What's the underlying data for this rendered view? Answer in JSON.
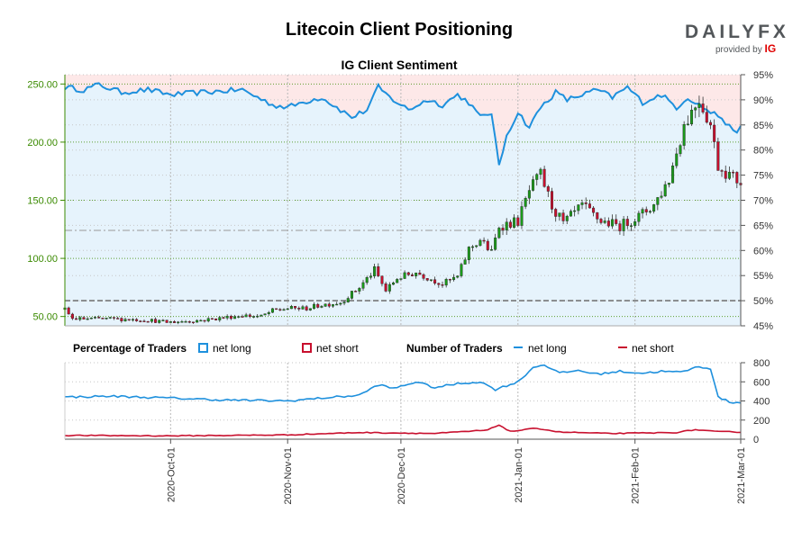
{
  "header": {
    "title": "Litecoin Client Positioning",
    "logo_text": "DAILYFX",
    "logo_provided": "provided by",
    "logo_brand": "IG"
  },
  "chart_data": [
    {
      "type": "candlestick",
      "title": "IG Client Sentiment",
      "price_axis": {
        "ticks": [
          "50.00",
          "100.00",
          "150.00",
          "200.00",
          "250.00"
        ],
        "ylim": [
          42,
          258
        ],
        "side": "left"
      },
      "sentiment_axis": {
        "ticks": [
          "45%",
          "50%",
          "55%",
          "60%",
          "65%",
          "70%",
          "75%",
          "80%",
          "85%",
          "90%",
          "95%"
        ],
        "ylim": [
          45,
          95
        ],
        "side": "right"
      },
      "x_range": [
        "2020-09-03",
        "2021-03-01"
      ],
      "date_ticks": [
        "2020-Oct-01",
        "2020-Nov-01",
        "2020-Dec-01",
        "2021-Jan-01",
        "2021-Feb-01",
        "2021-Mar-01"
      ],
      "grid": true,
      "colors": {
        "long": "#1e90dd",
        "short": "#c8102e",
        "up": "#1a9a1a",
        "down": "#c8102e",
        "price_axis": "#3a8a00"
      },
      "net_long_pct_anchors": [
        {
          "x": "2020-09-03",
          "y": 92.5
        },
        {
          "x": "2020-09-08",
          "y": 92.0
        },
        {
          "x": "2020-09-12",
          "y": 93.0
        },
        {
          "x": "2020-09-18",
          "y": 91.5
        },
        {
          "x": "2020-09-25",
          "y": 92.0
        },
        {
          "x": "2020-10-01",
          "y": 91.0
        },
        {
          "x": "2020-10-10",
          "y": 91.5
        },
        {
          "x": "2020-10-20",
          "y": 92.0
        },
        {
          "x": "2020-10-28",
          "y": 89.0
        },
        {
          "x": "2020-11-01",
          "y": 88.5
        },
        {
          "x": "2020-11-05",
          "y": 89.5
        },
        {
          "x": "2020-11-10",
          "y": 90.5
        },
        {
          "x": "2020-11-14",
          "y": 88.5
        },
        {
          "x": "2020-11-18",
          "y": 86.5
        },
        {
          "x": "2020-11-22",
          "y": 88.0
        },
        {
          "x": "2020-11-25",
          "y": 92.5
        },
        {
          "x": "2020-11-28",
          "y": 90.5
        },
        {
          "x": "2020-12-03",
          "y": 88.0
        },
        {
          "x": "2020-12-08",
          "y": 90.0
        },
        {
          "x": "2020-12-12",
          "y": 89.0
        },
        {
          "x": "2020-12-16",
          "y": 91.0
        },
        {
          "x": "2020-12-19",
          "y": 89.5
        },
        {
          "x": "2020-12-22",
          "y": 86.5
        },
        {
          "x": "2020-12-25",
          "y": 87.5
        },
        {
          "x": "2020-12-27",
          "y": 76.5
        },
        {
          "x": "2020-12-29",
          "y": 83.0
        },
        {
          "x": "2021-01-01",
          "y": 87.5
        },
        {
          "x": "2021-01-04",
          "y": 84.5
        },
        {
          "x": "2021-01-07",
          "y": 88.5
        },
        {
          "x": "2021-01-11",
          "y": 91.5
        },
        {
          "x": "2021-01-14",
          "y": 90.0
        },
        {
          "x": "2021-01-18",
          "y": 91.0
        },
        {
          "x": "2021-01-22",
          "y": 92.0
        },
        {
          "x": "2021-01-26",
          "y": 90.5
        },
        {
          "x": "2021-01-30",
          "y": 92.5
        },
        {
          "x": "2021-02-03",
          "y": 89.5
        },
        {
          "x": "2021-02-08",
          "y": 91.0
        },
        {
          "x": "2021-02-12",
          "y": 88.5
        },
        {
          "x": "2021-02-15",
          "y": 90.5
        },
        {
          "x": "2021-02-18",
          "y": 89.0
        },
        {
          "x": "2021-02-21",
          "y": 87.5
        },
        {
          "x": "2021-02-24",
          "y": 86.5
        },
        {
          "x": "2021-02-27",
          "y": 83.5
        },
        {
          "x": "2021-03-01",
          "y": 84.5
        }
      ],
      "price_anchors": [
        {
          "x": "2020-09-03",
          "y": 56
        },
        {
          "x": "2020-09-05",
          "y": 48
        },
        {
          "x": "2020-09-15",
          "y": 48
        },
        {
          "x": "2020-09-25",
          "y": 47
        },
        {
          "x": "2020-09-30",
          "y": 45
        },
        {
          "x": "2020-10-10",
          "y": 47
        },
        {
          "x": "2020-10-20",
          "y": 51
        },
        {
          "x": "2020-10-25",
          "y": 50
        },
        {
          "x": "2020-10-28",
          "y": 55
        },
        {
          "x": "2020-11-01",
          "y": 57
        },
        {
          "x": "2020-11-06",
          "y": 57
        },
        {
          "x": "2020-11-10",
          "y": 60
        },
        {
          "x": "2020-11-15",
          "y": 62
        },
        {
          "x": "2020-11-20",
          "y": 75
        },
        {
          "x": "2020-11-24",
          "y": 90
        },
        {
          "x": "2020-11-27",
          "y": 72
        },
        {
          "x": "2020-11-30",
          "y": 83
        },
        {
          "x": "2020-12-05",
          "y": 88
        },
        {
          "x": "2020-12-12",
          "y": 78
        },
        {
          "x": "2020-12-16",
          "y": 84
        },
        {
          "x": "2020-12-19",
          "y": 108
        },
        {
          "x": "2020-12-22",
          "y": 116
        },
        {
          "x": "2020-12-25",
          "y": 105
        },
        {
          "x": "2020-12-27",
          "y": 128
        },
        {
          "x": "2021-01-01",
          "y": 132
        },
        {
          "x": "2021-01-04",
          "y": 158
        },
        {
          "x": "2021-01-07",
          "y": 172
        },
        {
          "x": "2021-01-10",
          "y": 145
        },
        {
          "x": "2021-01-13",
          "y": 130
        },
        {
          "x": "2021-01-18",
          "y": 145
        },
        {
          "x": "2021-01-23",
          "y": 132
        },
        {
          "x": "2021-01-28",
          "y": 128
        },
        {
          "x": "2021-02-02",
          "y": 136
        },
        {
          "x": "2021-02-06",
          "y": 146
        },
        {
          "x": "2021-02-10",
          "y": 168
        },
        {
          "x": "2021-02-14",
          "y": 215
        },
        {
          "x": "2021-02-18",
          "y": 238
        },
        {
          "x": "2021-02-21",
          "y": 215
        },
        {
          "x": "2021-02-23",
          "y": 180
        },
        {
          "x": "2021-02-26",
          "y": 172
        },
        {
          "x": "2021-03-01",
          "y": 165
        }
      ],
      "reference_lines": [
        {
          "axis": "sentiment",
          "value": 50.0
        },
        {
          "axis": "sentiment",
          "value": 64.0
        }
      ]
    },
    {
      "type": "line",
      "left_legend_title": "Percentage of Traders",
      "right_legend_title": "Number of Traders",
      "legend": [
        {
          "group": "percentage",
          "name": "net long",
          "color": "#1e90dd",
          "marker": "square"
        },
        {
          "group": "percentage",
          "name": "net short",
          "color": "#c8102e",
          "marker": "square"
        },
        {
          "group": "number",
          "name": "net long",
          "color": "#1e90dd",
          "marker": "line"
        },
        {
          "group": "number",
          "name": "net short",
          "color": "#c8102e",
          "marker": "line"
        }
      ],
      "y_axis": {
        "ticks": [
          "0",
          "200",
          "400",
          "600",
          "800"
        ],
        "ylim": [
          0,
          800
        ],
        "side": "right"
      },
      "series": [
        {
          "name": "net long",
          "color": "#1e90dd",
          "anchors": [
            {
              "x": "2020-09-03",
              "y": 440
            },
            {
              "x": "2020-09-15",
              "y": 450
            },
            {
              "x": "2020-10-01",
              "y": 430
            },
            {
              "x": "2020-10-15",
              "y": 410
            },
            {
              "x": "2020-11-01",
              "y": 400
            },
            {
              "x": "2020-11-10",
              "y": 430
            },
            {
              "x": "2020-11-20",
              "y": 460
            },
            {
              "x": "2020-11-25",
              "y": 570
            },
            {
              "x": "2020-11-29",
              "y": 530
            },
            {
              "x": "2020-12-05",
              "y": 600
            },
            {
              "x": "2020-12-10",
              "y": 540
            },
            {
              "x": "2020-12-16",
              "y": 580
            },
            {
              "x": "2020-12-22",
              "y": 600
            },
            {
              "x": "2020-12-26",
              "y": 520
            },
            {
              "x": "2021-01-01",
              "y": 600
            },
            {
              "x": "2021-01-05",
              "y": 750
            },
            {
              "x": "2021-01-08",
              "y": 780
            },
            {
              "x": "2021-01-12",
              "y": 690
            },
            {
              "x": "2021-01-17",
              "y": 720
            },
            {
              "x": "2021-01-22",
              "y": 680
            },
            {
              "x": "2021-01-28",
              "y": 710
            },
            {
              "x": "2021-02-03",
              "y": 690
            },
            {
              "x": "2021-02-08",
              "y": 710
            },
            {
              "x": "2021-02-13",
              "y": 700
            },
            {
              "x": "2021-02-18",
              "y": 760
            },
            {
              "x": "2021-02-21",
              "y": 740
            },
            {
              "x": "2021-02-23",
              "y": 440
            },
            {
              "x": "2021-02-26",
              "y": 390
            },
            {
              "x": "2021-03-01",
              "y": 380
            }
          ]
        },
        {
          "name": "net short",
          "color": "#c8102e",
          "anchors": [
            {
              "x": "2020-09-03",
              "y": 40
            },
            {
              "x": "2020-10-01",
              "y": 35
            },
            {
              "x": "2020-11-01",
              "y": 45
            },
            {
              "x": "2020-11-20",
              "y": 70
            },
            {
              "x": "2020-12-10",
              "y": 60
            },
            {
              "x": "2020-12-24",
              "y": 95
            },
            {
              "x": "2020-12-27",
              "y": 150
            },
            {
              "x": "2020-12-30",
              "y": 80
            },
            {
              "x": "2021-01-06",
              "y": 115
            },
            {
              "x": "2021-01-12",
              "y": 75
            },
            {
              "x": "2021-01-25",
              "y": 60
            },
            {
              "x": "2021-02-05",
              "y": 65
            },
            {
              "x": "2021-02-12",
              "y": 70
            },
            {
              "x": "2021-02-17",
              "y": 100
            },
            {
              "x": "2021-02-22",
              "y": 80
            },
            {
              "x": "2021-03-01",
              "y": 75
            }
          ]
        }
      ]
    }
  ]
}
